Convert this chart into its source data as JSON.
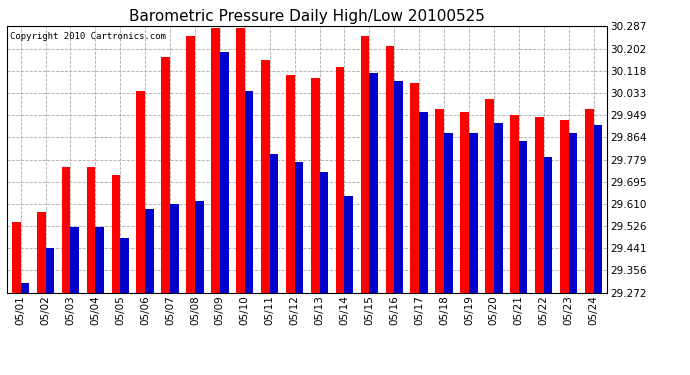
{
  "title": "Barometric Pressure Daily High/Low 20100525",
  "copyright": "Copyright 2010 Cartronics.com",
  "background_color": "#ffffff",
  "bar_width": 0.35,
  "dates": [
    "05/01",
    "05/02",
    "05/03",
    "05/04",
    "05/05",
    "05/06",
    "05/07",
    "05/08",
    "05/09",
    "05/10",
    "05/11",
    "05/12",
    "05/13",
    "05/14",
    "05/15",
    "05/16",
    "05/17",
    "05/18",
    "05/19",
    "05/20",
    "05/21",
    "05/22",
    "05/23",
    "05/24"
  ],
  "highs": [
    29.54,
    29.58,
    29.75,
    29.75,
    29.72,
    30.04,
    30.17,
    30.25,
    30.28,
    30.28,
    30.16,
    30.1,
    30.09,
    30.13,
    30.25,
    30.21,
    30.07,
    29.97,
    29.96,
    30.01,
    29.95,
    29.94,
    29.93,
    29.97
  ],
  "lows": [
    29.31,
    29.44,
    29.52,
    29.52,
    29.48,
    29.59,
    29.61,
    29.62,
    30.19,
    30.04,
    29.8,
    29.77,
    29.73,
    29.64,
    30.11,
    30.08,
    29.96,
    29.88,
    29.88,
    29.92,
    29.85,
    29.79,
    29.88,
    29.91
  ],
  "high_color": "#ff0000",
  "low_color": "#0000cc",
  "ymin": 29.272,
  "ymax": 30.287,
  "yticks": [
    29.272,
    29.356,
    29.441,
    29.526,
    29.61,
    29.695,
    29.779,
    29.864,
    29.949,
    30.033,
    30.118,
    30.202,
    30.287
  ],
  "grid_color": "#aaaaaa",
  "title_fontsize": 11,
  "tick_fontsize": 7.5,
  "copyright_fontsize": 6.5
}
